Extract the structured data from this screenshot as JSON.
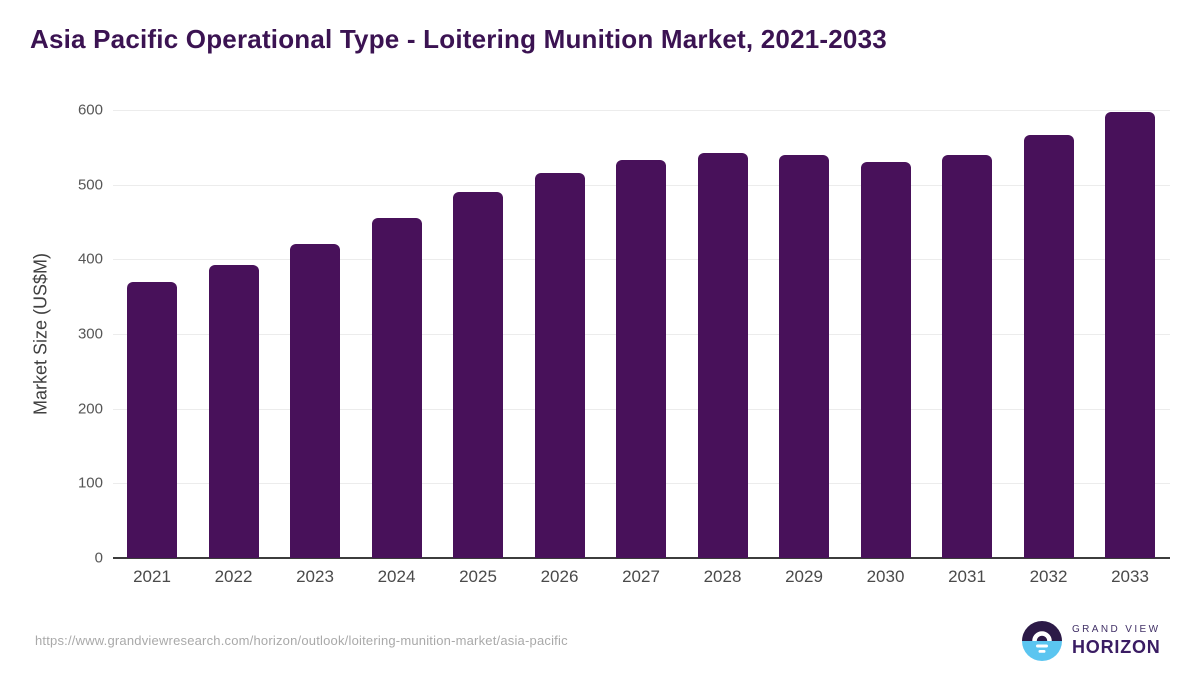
{
  "chart_data": {
    "type": "bar",
    "title": "Asia Pacific Operational Type - Loitering Munition Market, 2021-2033",
    "xlabel": "",
    "ylabel": "Market Size (US$M)",
    "categories": [
      "2021",
      "2022",
      "2023",
      "2024",
      "2025",
      "2026",
      "2027",
      "2028",
      "2029",
      "2030",
      "2031",
      "2032",
      "2033"
    ],
    "values": [
      370,
      392,
      420,
      455,
      490,
      516,
      533,
      542,
      540,
      531,
      540,
      566,
      598
    ],
    "ylim": [
      0,
      600
    ],
    "yticks": [
      0,
      100,
      200,
      300,
      400,
      500,
      600
    ],
    "grid": true,
    "legend": "none",
    "bar_color": "#48115a"
  },
  "footer": {
    "source_url": "https://www.grandviewresearch.com/horizon/outlook/loitering-munition-market/asia-pacific",
    "logo": {
      "line1": "GRAND VIEW",
      "line2": "HORIZON",
      "icon": "horizon-sunrise-circle-icon",
      "icon_top_color": "#2c1a47",
      "icon_bottom_color": "#5bc5f0"
    }
  },
  "colors": {
    "title": "#3b1352",
    "bar": "#48115a",
    "gridline": "#ececec",
    "axis_line": "#3c3c3c",
    "tick_label": "#4a4a4a",
    "url_text": "#a9a9a9",
    "background": "#ffffff"
  }
}
